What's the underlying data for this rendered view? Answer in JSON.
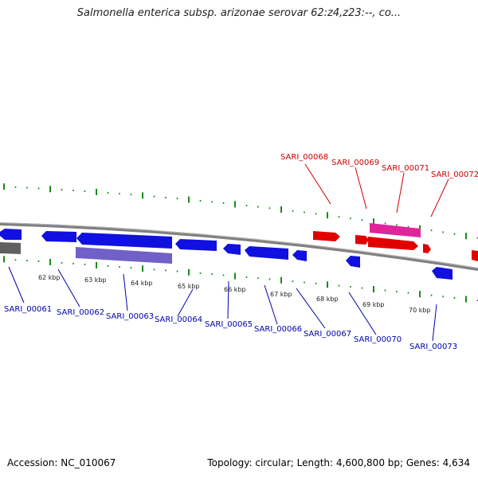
{
  "title": "Salmonella enterica subsp. arizonae serovar 62:z4,z23:--, co...",
  "footer": {
    "accession": "Accession: NC_010067",
    "stats": "Topology: circular; Length: 4,600,800 bp; Genes: 4,634"
  },
  "colors": {
    "forward_gene": "#e00000",
    "reverse_gene": "#1010e0",
    "rna_pink": "#e0249c",
    "rna_purple": "#7060c8",
    "gray_feature": "#606060",
    "backbone": "#808080",
    "ticks": "#1a8a1a"
  },
  "kbp_labels": [
    "62 kbp",
    "63 kbp",
    "64 kbp",
    "65 kbp",
    "66 kbp",
    "67 kbp",
    "68 kbp",
    "69 kbp",
    "70 kbp"
  ],
  "top_labels": [
    "SARI_00068",
    "SARI_00069",
    "SARI_00071",
    "SARI_00072"
  ],
  "bottom_labels": [
    "SARI_00061",
    "SARI_00062",
    "SARI_00063",
    "SARI_00064",
    "SARI_00065",
    "SARI_00066",
    "SARI_00067",
    "SARI_00070",
    "SARI_00073"
  ]
}
